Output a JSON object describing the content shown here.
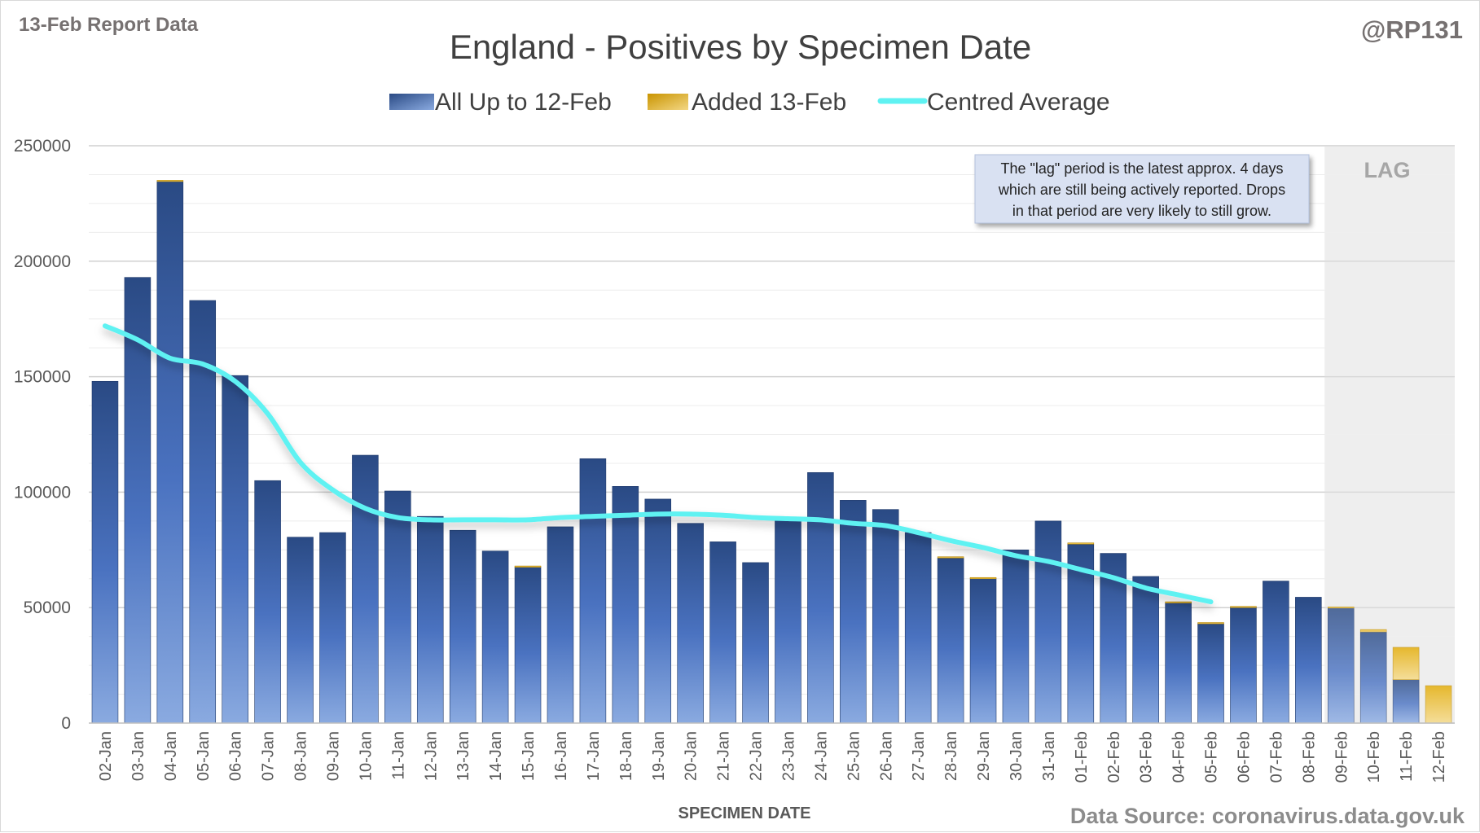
{
  "header": {
    "report_label": "13-Feb Report Data",
    "handle": "@RP131",
    "source": "Data Source: coronavirus.data.gov.uk"
  },
  "colors": {
    "bar_top": "#2a4a84",
    "bar_bottom": "#8aaae0",
    "added_top": "#e0a800",
    "added_bottom": "#f3d784",
    "average_line": "#5ff2f2",
    "lag_shade": "#ebebeb",
    "note_box": "#d9e1f2"
  },
  "annotations": {
    "lag_label": "LAG",
    "note_lines": [
      "The \"lag\" period is the latest approx. 4 days",
      "which are still being actively reported.  Drops",
      "in that period are very likely to still grow."
    ]
  },
  "chart_data": {
    "type": "bar",
    "title": "England - Positives by Specimen Date",
    "xlabel": "SPECIMEN DATE",
    "ylabel": "",
    "ylim": [
      0,
      250000
    ],
    "y_ticks": [
      "0",
      "50000",
      "100000",
      "150000",
      "200000",
      "250000"
    ],
    "grid": true,
    "legend_position": "top-center",
    "stacked": true,
    "lag_start_category": "09-Feb",
    "categories": [
      "02-Jan",
      "03-Jan",
      "04-Jan",
      "05-Jan",
      "06-Jan",
      "07-Jan",
      "08-Jan",
      "09-Jan",
      "10-Jan",
      "11-Jan",
      "12-Jan",
      "13-Jan",
      "14-Jan",
      "15-Jan",
      "16-Jan",
      "17-Jan",
      "18-Jan",
      "19-Jan",
      "20-Jan",
      "21-Jan",
      "22-Jan",
      "23-Jan",
      "24-Jan",
      "25-Jan",
      "26-Jan",
      "27-Jan",
      "28-Jan",
      "29-Jan",
      "30-Jan",
      "31-Jan",
      "01-Feb",
      "02-Feb",
      "03-Feb",
      "04-Feb",
      "05-Feb",
      "06-Feb",
      "07-Feb",
      "08-Feb",
      "09-Feb",
      "10-Feb",
      "11-Feb",
      "12-Feb"
    ],
    "series": [
      {
        "name": "All Up to 12-Feb",
        "kind": "bar",
        "values": [
          148000,
          193000,
          234500,
          183000,
          150500,
          105000,
          80500,
          82500,
          116000,
          100500,
          89500,
          83500,
          74500,
          67500,
          85000,
          114500,
          102500,
          97000,
          86500,
          78500,
          69500,
          88500,
          108500,
          96500,
          92500,
          82500,
          71500,
          62500,
          75000,
          87500,
          77500,
          73500,
          63500,
          52000,
          43000,
          50000,
          61500,
          54500,
          49800,
          39500,
          18800,
          0
        ]
      },
      {
        "name": "Added 13-Feb",
        "kind": "bar",
        "values": [
          0,
          0,
          500,
          0,
          0,
          0,
          0,
          0,
          0,
          0,
          0,
          0,
          0,
          300,
          0,
          0,
          0,
          0,
          0,
          0,
          0,
          0,
          0,
          0,
          0,
          0,
          300,
          300,
          0,
          0,
          500,
          0,
          0,
          300,
          300,
          300,
          0,
          0,
          500,
          1000,
          14000,
          16200
        ]
      },
      {
        "name": "Centred Average",
        "kind": "line",
        "values": [
          172000,
          166000,
          158000,
          155500,
          148000,
          134000,
          113000,
          101000,
          93000,
          89000,
          88000,
          88000,
          88000,
          88000,
          89000,
          89500,
          90000,
          90500,
          90500,
          90000,
          89000,
          88500,
          88000,
          86500,
          85500,
          82500,
          79000,
          76000,
          72500,
          70000,
          66500,
          63000,
          58500,
          55500,
          52500,
          null,
          null,
          null,
          null,
          null,
          null,
          null
        ]
      }
    ]
  }
}
